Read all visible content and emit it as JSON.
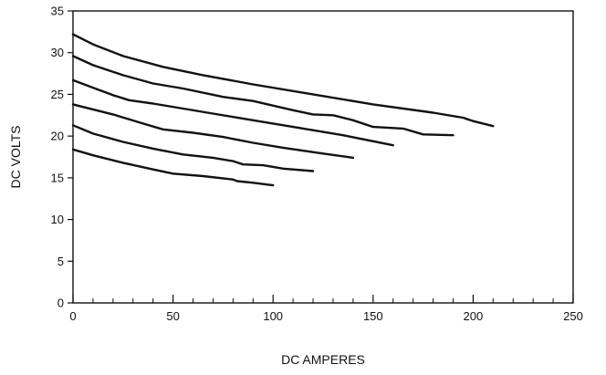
{
  "chart_data": {
    "type": "line",
    "title": "",
    "xlabel": "DC AMPERES",
    "ylabel": "DC VOLTS",
    "xlim": [
      0,
      250
    ],
    "ylim": [
      0,
      35
    ],
    "xticks": [
      0,
      50,
      100,
      150,
      200,
      250
    ],
    "yticks": [
      0,
      5,
      10,
      15,
      20,
      25,
      30,
      35
    ],
    "x_minor_step": 10,
    "grid": false,
    "legend": "none",
    "line_color": "#111111",
    "series": [
      {
        "points": [
          [
            0,
            18.4
          ],
          [
            10,
            17.7
          ],
          [
            25,
            16.8
          ],
          [
            40,
            16.0
          ],
          [
            50,
            15.5
          ],
          [
            65,
            15.2
          ],
          [
            80,
            14.8
          ],
          [
            82,
            14.6
          ],
          [
            90,
            14.4
          ],
          [
            100,
            14.1
          ]
        ]
      },
      {
        "points": [
          [
            0,
            21.3
          ],
          [
            10,
            20.3
          ],
          [
            25,
            19.3
          ],
          [
            40,
            18.5
          ],
          [
            55,
            17.8
          ],
          [
            70,
            17.4
          ],
          [
            80,
            17.0
          ],
          [
            85,
            16.6
          ],
          [
            95,
            16.5
          ],
          [
            105,
            16.1
          ],
          [
            120,
            15.8
          ]
        ]
      },
      {
        "points": [
          [
            0,
            23.8
          ],
          [
            20,
            22.6
          ],
          [
            35,
            21.5
          ],
          [
            45,
            20.8
          ],
          [
            60,
            20.4
          ],
          [
            75,
            19.9
          ],
          [
            90,
            19.2
          ],
          [
            105,
            18.6
          ],
          [
            125,
            17.9
          ],
          [
            140,
            17.4
          ]
        ]
      },
      {
        "points": [
          [
            0,
            26.7
          ],
          [
            10,
            25.8
          ],
          [
            20,
            24.9
          ],
          [
            28,
            24.3
          ],
          [
            40,
            23.9
          ],
          [
            55,
            23.3
          ],
          [
            70,
            22.7
          ],
          [
            90,
            21.9
          ],
          [
            110,
            21.1
          ],
          [
            135,
            20.1
          ],
          [
            160,
            18.9
          ]
        ]
      },
      {
        "points": [
          [
            0,
            29.6
          ],
          [
            10,
            28.5
          ],
          [
            25,
            27.3
          ],
          [
            40,
            26.3
          ],
          [
            55,
            25.7
          ],
          [
            75,
            24.7
          ],
          [
            90,
            24.2
          ],
          [
            110,
            23.1
          ],
          [
            120,
            22.6
          ],
          [
            130,
            22.5
          ],
          [
            140,
            21.9
          ],
          [
            150,
            21.1
          ],
          [
            165,
            20.9
          ],
          [
            175,
            20.2
          ],
          [
            190,
            20.1
          ]
        ]
      },
      {
        "points": [
          [
            0,
            32.2
          ],
          [
            10,
            31.0
          ],
          [
            25,
            29.6
          ],
          [
            45,
            28.3
          ],
          [
            65,
            27.3
          ],
          [
            90,
            26.2
          ],
          [
            120,
            25.0
          ],
          [
            150,
            23.8
          ],
          [
            180,
            22.8
          ],
          [
            195,
            22.2
          ],
          [
            200,
            21.8
          ],
          [
            210,
            21.2
          ]
        ]
      }
    ]
  }
}
